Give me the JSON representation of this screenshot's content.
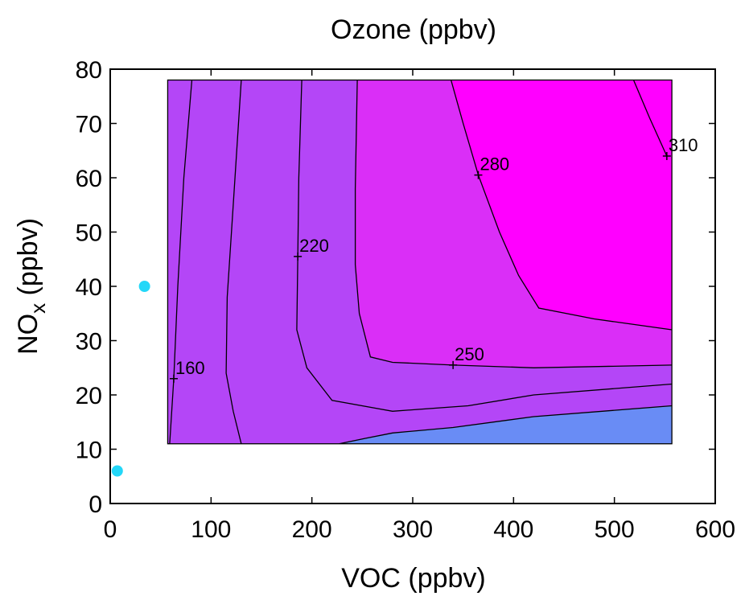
{
  "chart_data": {
    "type": "contour",
    "title": "Ozone (ppbv)",
    "xlabel": "VOC (ppbv)",
    "ylabel_main": "NO",
    "ylabel_sub": "x",
    "ylabel_tail": " (ppbv)",
    "xlim": [
      0,
      600
    ],
    "ylim": [
      0,
      80
    ],
    "xticks": [
      "0",
      "100",
      "200",
      "300",
      "400",
      "500",
      "600"
    ],
    "yticks": [
      "0",
      "10",
      "20",
      "30",
      "40",
      "50",
      "60",
      "70",
      "80"
    ],
    "grid": false,
    "legend": "none",
    "grid_domain": {
      "x": [
        57,
        557
      ],
      "y": [
        11,
        78
      ]
    },
    "level_colors": [
      "#23d7f8",
      "#3cb2f6",
      "#698cf5",
      "#9066f5",
      "#b446f7",
      "#da2ef7",
      "#ff00ff"
    ],
    "contour_lines": [
      {
        "label": "160",
        "label_at": [
          63,
          23
        ],
        "points": [
          [
            81,
            78
          ],
          [
            73,
            60
          ],
          [
            67,
            40
          ],
          [
            63,
            23
          ],
          [
            59,
            11
          ]
        ]
      },
      {
        "label": "",
        "points": [
          [
            130,
            78
          ],
          [
            122,
            55
          ],
          [
            116,
            38
          ],
          [
            115,
            24
          ],
          [
            122,
            17
          ],
          [
            130,
            11
          ]
        ]
      },
      {
        "label": "220",
        "label_at": [
          186,
          45.5
        ],
        "points": [
          [
            190,
            78
          ],
          [
            187,
            60
          ],
          [
            186,
            45
          ],
          [
            185,
            32
          ],
          [
            195,
            25
          ],
          [
            220,
            19
          ],
          [
            280,
            17
          ],
          [
            355,
            18
          ],
          [
            420,
            20
          ],
          [
            557,
            22
          ]
        ]
      },
      {
        "label": "",
        "points": [
          [
            227,
            11
          ],
          [
            253,
            12
          ],
          [
            280,
            13
          ],
          [
            340,
            14
          ],
          [
            420,
            16
          ],
          [
            557,
            18
          ]
        ]
      },
      {
        "label": "",
        "points": [
          [
            245,
            78
          ],
          [
            243,
            58
          ],
          [
            243,
            44
          ],
          [
            247,
            35
          ],
          [
            258,
            27
          ],
          [
            280,
            26
          ],
          [
            340,
            25.5
          ],
          [
            420,
            25
          ],
          [
            557,
            25.5
          ]
        ]
      },
      {
        "label": "280",
        "label_at": [
          365,
          60.5
        ],
        "points": [
          [
            338,
            78
          ],
          [
            350,
            70
          ],
          [
            365,
            60.5
          ],
          [
            386,
            50
          ],
          [
            405,
            42
          ],
          [
            425,
            36
          ],
          [
            480,
            34
          ],
          [
            557,
            32
          ]
        ]
      },
      {
        "label": "310",
        "label_at": [
          552,
          64
        ],
        "points": [
          [
            519,
            78
          ],
          [
            535,
            71
          ],
          [
            552,
            64
          ]
        ]
      }
    ],
    "labeled_points": [
      {
        "label": "250",
        "x": 340,
        "y": 25.5
      }
    ],
    "markers": {
      "color": "#23d7f8",
      "points": [
        [
          34,
          40
        ],
        [
          7,
          6
        ]
      ]
    }
  }
}
